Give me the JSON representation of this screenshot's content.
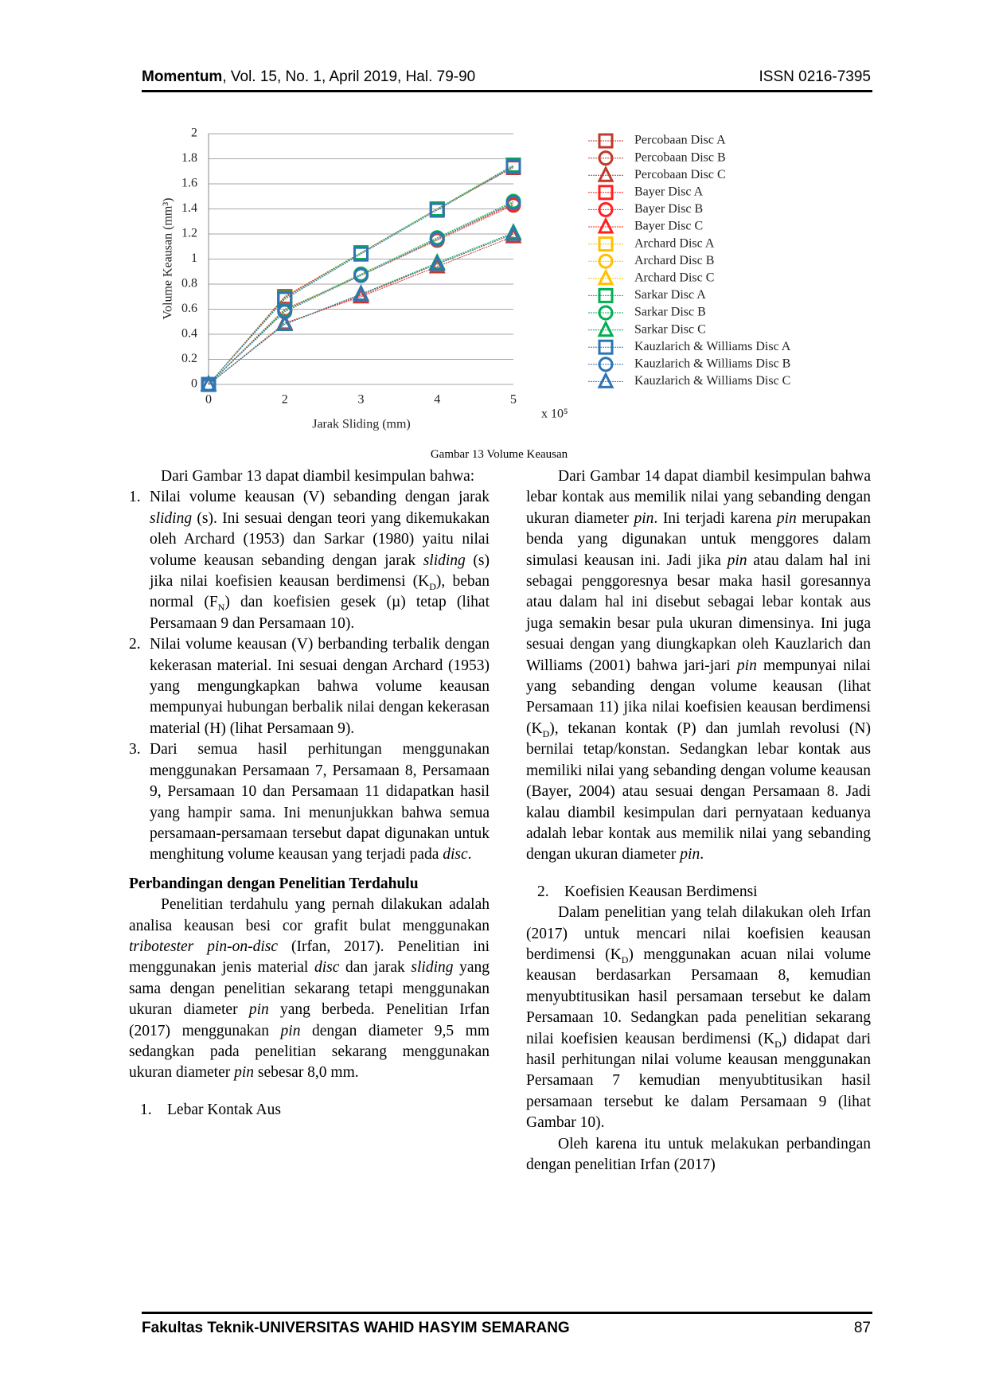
{
  "header": {
    "journal": "Momentum",
    "issue": ", Vol. 15, No. 1, April 2019, Hal. 79-90",
    "issn": "ISSN 0216-7395"
  },
  "chart_data": {
    "type": "line",
    "ylabel": "Volume Keausan (mm³)",
    "xlabel": "Jarak Sliding (mm)",
    "x_multiplier": "x 10⁵",
    "categories": [
      "0",
      "2",
      "3",
      "4",
      "5"
    ],
    "ylim": [
      0,
      2
    ],
    "yticks": [
      0,
      0.2,
      0.4,
      0.6,
      0.8,
      1,
      1.2,
      1.4,
      1.6,
      1.8,
      2
    ],
    "grid": true,
    "legend": "right",
    "series": [
      {
        "name": "Percobaan Disc A",
        "color": "#c0392b",
        "marker": "square",
        "values": [
          0,
          0.7,
          1.05,
          1.4,
          1.73
        ]
      },
      {
        "name": "Percobaan Disc B",
        "color": "#c0392b",
        "marker": "circle",
        "values": [
          0,
          0.6,
          0.87,
          1.15,
          1.43
        ]
      },
      {
        "name": "Percobaan Disc C",
        "color": "#c0392b",
        "marker": "triangle",
        "values": [
          0,
          0.49,
          0.7,
          0.94,
          1.18
        ]
      },
      {
        "name": "Bayer Disc A",
        "color": "#ff2020",
        "marker": "square",
        "values": [
          0,
          0.7,
          1.05,
          1.4,
          1.74
        ]
      },
      {
        "name": "Bayer Disc B",
        "color": "#ff2020",
        "marker": "circle",
        "values": [
          0,
          0.59,
          0.87,
          1.16,
          1.44
        ]
      },
      {
        "name": "Bayer Disc C",
        "color": "#ff2020",
        "marker": "triangle",
        "values": [
          0,
          0.48,
          0.71,
          0.96,
          1.2
        ]
      },
      {
        "name": "Archard Disc A",
        "color": "#ffc000",
        "marker": "square",
        "values": [
          0,
          0.69,
          1.05,
          1.4,
          1.74
        ]
      },
      {
        "name": "Archard Disc B",
        "color": "#ffc000",
        "marker": "circle",
        "values": [
          0,
          0.59,
          0.87,
          1.16,
          1.45
        ]
      },
      {
        "name": "Archard Disc C",
        "color": "#ffc000",
        "marker": "triangle",
        "values": [
          0,
          0.48,
          0.72,
          0.96,
          1.2
        ]
      },
      {
        "name": "Sarkar Disc A",
        "color": "#00b050",
        "marker": "square",
        "values": [
          0,
          0.69,
          1.05,
          1.4,
          1.75
        ]
      },
      {
        "name": "Sarkar Disc B",
        "color": "#00b050",
        "marker": "circle",
        "values": [
          0,
          0.59,
          0.88,
          1.17,
          1.46
        ]
      },
      {
        "name": "Sarkar Disc C",
        "color": "#00b050",
        "marker": "triangle",
        "values": [
          0,
          0.48,
          0.72,
          0.97,
          1.21
        ]
      },
      {
        "name": "Kauzlarich & Williams Disc A",
        "color": "#2e75b6",
        "marker": "square",
        "values": [
          0,
          0.68,
          1.04,
          1.39,
          1.74
        ]
      },
      {
        "name": "Kauzlarich & Williams Disc B",
        "color": "#2e75b6",
        "marker": "circle",
        "values": [
          0,
          0.58,
          0.87,
          1.16,
          1.45
        ]
      },
      {
        "name": "Kauzlarich & Williams Disc C",
        "color": "#2e75b6",
        "marker": "triangle",
        "values": [
          0,
          0.48,
          0.72,
          0.96,
          1.2
        ]
      }
    ]
  },
  "caption": "Gambar 13 Volume Keausan",
  "columns": [
    [
      {
        "p": [
          "Dari Gambar 13 dapat diambil kesimpulan bahwa:"
        ]
      },
      {
        "number": "1.",
        "text": [
          "Nilai volume keausan (V) sebanding dengan jarak ",
          {
            "i": "sliding"
          },
          " (s). Ini sesuai dengan teori yang dikemukakan oleh Archard (1953) dan Sarkar (1980) yaitu nilai volume keausan sebanding dengan jarak ",
          {
            "i": "sliding"
          },
          " (s) jika nilai koefisien keausan berdimensi (K",
          {
            "sub": "D"
          },
          "), beban normal (F",
          {
            "sub": "N"
          },
          ") dan koefisien gesek (µ) tetap (lihat Persamaan 9 dan Persamaan 10)."
        ]
      },
      {
        "number": "2.",
        "text": [
          "Nilai volume keausan (V) berbanding terbalik dengan kekerasan material. Ini sesuai dengan Archard (1953) yang mengungkapkan bahwa volume keausan mempunyai hubungan berbalik nilai dengan kekerasan material (H) (lihat Persamaan 9)."
        ]
      },
      {
        "number": "3.",
        "text": [
          "Dari semua hasil perhitungan menggunakan menggunakan Persamaan 7, Persamaan 8, Persamaan 9, Persamaan 10 dan Persamaan 11 didapatkan hasil yang hampir sama. Ini menunjukkan bahwa semua persamaan-persamaan tersebut dapat digunakan untuk menghitung volume keausan yang terjadi pada ",
          {
            "i": "disc"
          },
          "."
        ]
      },
      {
        "heading": "Perbandingan dengan Penelitian Terdahulu"
      },
      {
        "p": [
          "Penelitian terdahulu yang pernah dilakukan adalah analisa keausan besi cor grafit bulat menggunakan ",
          {
            "i": "tribotester pin-on-disc"
          },
          " (Irfan, 2017). Penelitian ini menggunakan jenis material ",
          {
            "i": "disc"
          },
          " dan jarak ",
          {
            "i": "sliding"
          },
          " yang sama dengan penelitian sekarang tetapi menggunakan ukuran diameter ",
          {
            "i": "pin"
          },
          " yang berbeda. Penelitian Irfan (2017) menggunakan ",
          {
            "i": "pin"
          },
          " dengan diameter 9,5 mm sedangkan pada penelitian sekarang menggunakan ukuran diameter ",
          {
            "i": "pin"
          },
          " sebesar 8,0 mm."
        ]
      },
      {
        "number": "1.",
        "title": "Lebar Kontak Aus"
      }
    ],
    [
      {
        "p": [
          "Dari Gambar 14 dapat diambil kesimpulan bahwa lebar kontak aus memilik nilai yang sebanding dengan ukuran diameter ",
          {
            "i": "pin"
          },
          ". Ini terjadi karena ",
          {
            "i": "pin"
          },
          " merupakan benda yang digunakan untuk menggores dalam simulasi keausan ini. Jadi jika ",
          {
            "i": "pin"
          },
          " atau dalam hal ini sebagai penggoresnya besar maka hasil goresannya atau dalam hal ini disebut sebagai lebar kontak aus juga semakin besar pula ukuran dimensinya. Ini juga sesuai dengan yang diungkapkan oleh Kauzlarich dan Williams (2001) bahwa jari-jari ",
          {
            "i": "pin"
          },
          " mempunyai nilai yang sebanding dengan volume keausan (lihat Persamaan 11) jika nilai koefisien keausan berdimensi (K",
          {
            "sub": "D"
          },
          "), tekanan kontak (P) dan jumlah revolusi (N) bernilai tetap/konstan. Sedangkan lebar kontak aus memiliki nilai yang sebanding dengan volume keausan (Bayer, 2004) atau sesuai dengan Persamaan 8. Jadi kalau diambil kesimpulan dari pernyataan keduanya adalah lebar kontak aus memilik nilai yang sebanding dengan ukuran diameter ",
          {
            "i": "pin"
          },
          "."
        ]
      },
      {
        "number": "2.",
        "title": "Koefisien Keausan Berdimensi"
      },
      {
        "p": [
          "Dalam penelitian yang telah dilakukan oleh Irfan (2017) untuk mencari nilai koefisien keausan berdimensi (K",
          {
            "sub": "D"
          },
          ") menggunakan acuan nilai volume keausan berdasarkan Persamaan 8, kemudian menyubtitusikan hasil persamaan tersebut ke dalam Persamaan 10. Sedangkan pada penelitian sekarang nilai koefisien keausan berdimensi (K",
          {
            "sub": "D"
          },
          ") didapat dari hasil perhitungan nilai volume keausan menggunakan Persamaan 7 kemudian menyubtitusikan hasil persamaan tersebut ke dalam Persamaan 9 (lihat Gambar 10)."
        ]
      },
      {
        "p": [
          "Oleh karena itu untuk melakukan perbandingan dengan penelitian Irfan (2017)"
        ]
      }
    ]
  ],
  "footer": {
    "institution": "Fakultas Teknik-UNIVERSITAS WAHID HASYIM SEMARANG",
    "page": "87"
  }
}
